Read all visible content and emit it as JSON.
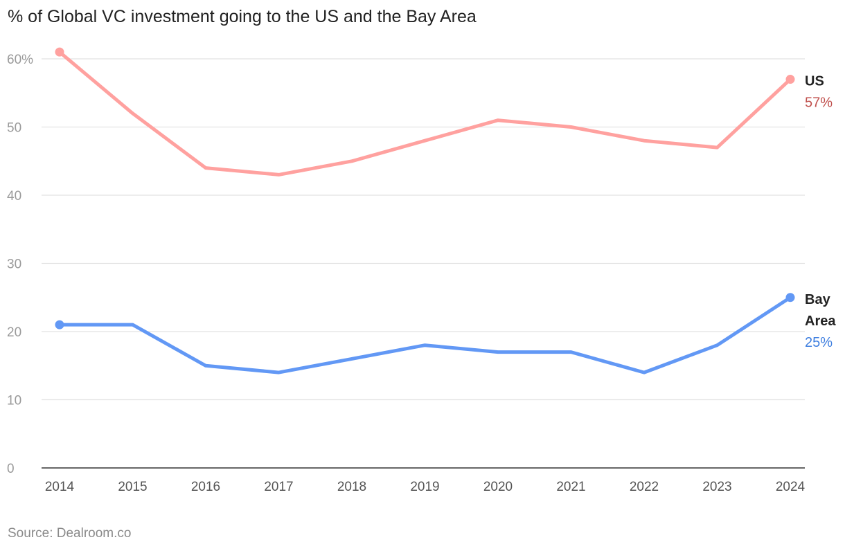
{
  "chart_data": {
    "type": "line",
    "title": "% of Global VC investment going to the US and the Bay Area",
    "source": "Source: Dealroom.co",
    "x": [
      "2014",
      "2015",
      "2016",
      "2017",
      "2018",
      "2019",
      "2020",
      "2021",
      "2022",
      "2023",
      "2024"
    ],
    "ylim": [
      0,
      60
    ],
    "yticks": [
      0,
      10,
      20,
      30,
      40,
      50,
      60
    ],
    "ytick_labels": [
      "0",
      "10",
      "20",
      "30",
      "40",
      "50",
      "60%"
    ],
    "grid": true,
    "legend": "direct labels at line ends (right)",
    "series": [
      {
        "name": "US",
        "name_lines": [
          "US"
        ],
        "end_label": "57%",
        "color": "#ffa19f",
        "label_color": "#c0504d",
        "values": [
          61,
          52,
          44,
          43,
          45,
          48,
          51,
          50,
          48,
          47,
          57
        ]
      },
      {
        "name": "Bay Area",
        "name_lines": [
          "Bay",
          "Area"
        ],
        "end_label": "25%",
        "color": "#6298f5",
        "label_color": "#3f7fe0",
        "values": [
          21,
          21,
          15,
          14,
          16,
          18,
          17,
          17,
          14,
          18,
          25
        ]
      }
    ]
  }
}
